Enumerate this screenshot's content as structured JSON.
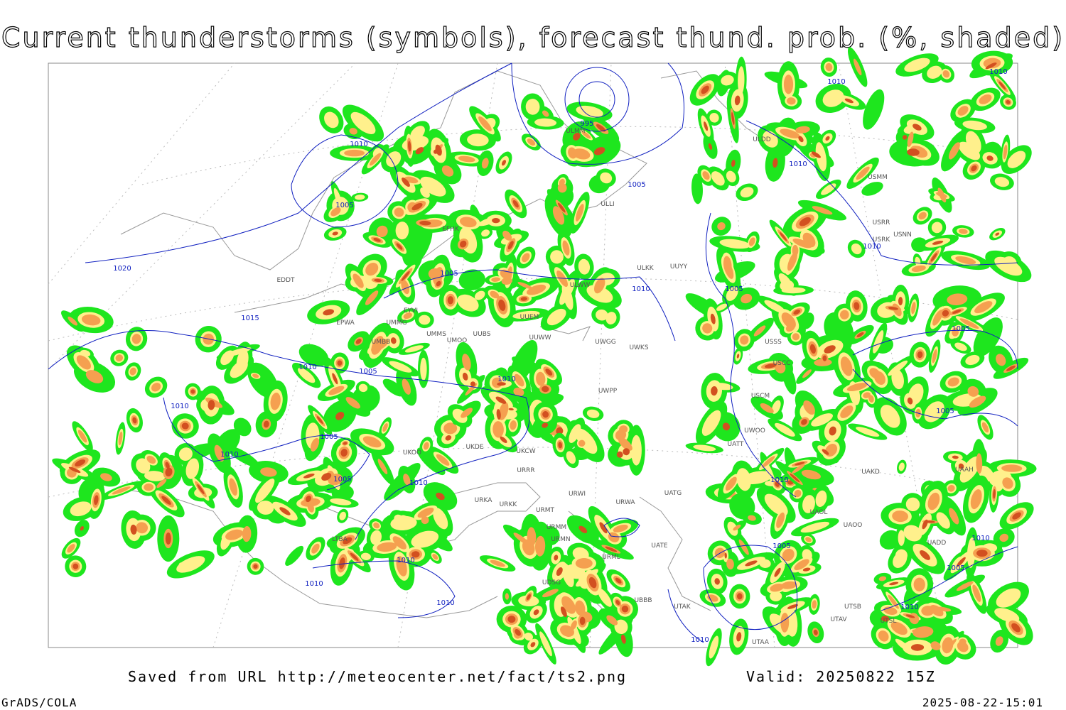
{
  "header": {
    "title": "Current thunderstorms (symbols), forecast thund. prob. (%, shaded)"
  },
  "footer": {
    "source": "Saved from URL http://meteocenter.net/fact/ts2.png",
    "valid": "Valid: 20250822 15Z",
    "software": "GrADS/COLA",
    "timestamp": "2025-08-22-15:01"
  },
  "isobar_labels": [
    1010,
    1005,
    995,
    1005,
    1010,
    1010,
    1010,
    1020,
    1005,
    1010,
    1015,
    1010,
    1005,
    1010,
    1010,
    1005,
    1010,
    1005,
    1010,
    1010,
    1005,
    1005,
    1005,
    1010,
    1005,
    1010,
    1010,
    1010,
    1010,
    1010,
    1005,
    1010
  ],
  "stations": [
    "ULMM",
    "ULDD",
    "ULLI",
    "EFHK",
    "ULKK",
    "UUYY",
    "ULWW",
    "EDDT",
    "EPWA",
    "UMMG",
    "EYVI",
    "UMMS",
    "UMOO",
    "UUBS",
    "UUEM",
    "UUWW",
    "UWGG",
    "UWKS",
    "USSS",
    "USCC",
    "UWPP",
    "USCM",
    "UWOO",
    "UATT",
    "UAKD",
    "UAAH",
    "UKDE",
    "UKOO",
    "UKCW",
    "URRR",
    "URWI",
    "UATG",
    "URKA",
    "URKK",
    "URMT",
    "URWA",
    "URMM",
    "UATE",
    "URMN",
    "URML",
    "UAOL",
    "UAOO",
    "UADD",
    "UDSG",
    "UBBB",
    "UTAK",
    "UTSB",
    "UTAV",
    "UTSL",
    "UTAA",
    "LTBA",
    "USRR",
    "USNN",
    "USRK",
    "USMM",
    "UMBB"
  ]
}
